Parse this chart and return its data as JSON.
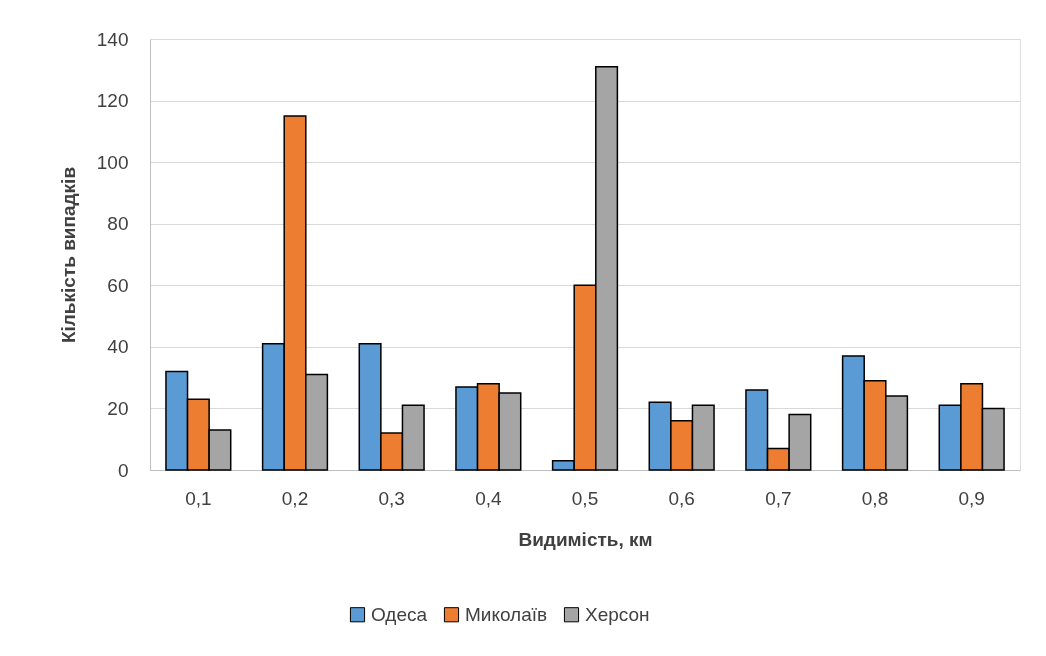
{
  "chart_data": {
    "type": "bar",
    "xlabel": "Видимість, км",
    "ylabel": "Кількість випадків",
    "categories": [
      "0,1",
      "0,2",
      "0,3",
      "0,4",
      "0,5",
      "0,6",
      "0,7",
      "0,8",
      "0,9"
    ],
    "series": [
      {
        "name": "Одеса",
        "color": "#5b9bd5",
        "values": [
          32,
          41,
          41,
          27,
          3,
          22,
          26,
          37,
          21
        ]
      },
      {
        "name": "Миколаїв",
        "color": "#ed7d31",
        "values": [
          23,
          115,
          12,
          28,
          60,
          16,
          7,
          29,
          28
        ]
      },
      {
        "name": "Херсон",
        "color": "#a5a5a5",
        "values": [
          13,
          31,
          21,
          25,
          131,
          21,
          18,
          24,
          20
        ]
      }
    ],
    "ylim": [
      0,
      140
    ],
    "yticks": [
      0,
      20,
      40,
      60,
      80,
      100,
      120,
      140
    ],
    "grid": "y",
    "legend": "bottom"
  }
}
